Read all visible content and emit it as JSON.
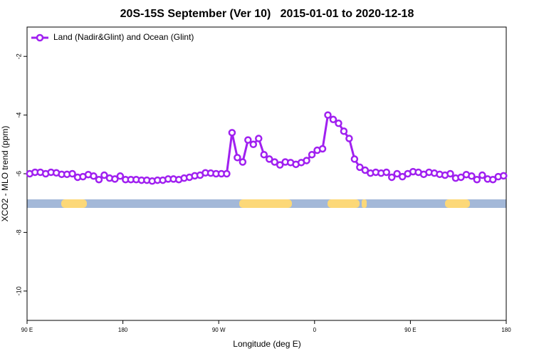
{
  "chart_data": {
    "type": "line",
    "title": "20S-15S September (Ver 10)   2015-01-01 to 2020-12-18",
    "x_label": "Longitude (deg E)",
    "y_label": "XCO2 - MLO trend (ppm)",
    "x": [
      92.5,
      97.5,
      102.5,
      107.5,
      112.5,
      117.5,
      122.5,
      127.5,
      132.5,
      137.5,
      142.5,
      147.5,
      152.5,
      157.5,
      162.5,
      167.5,
      172.5,
      177.5,
      182.5,
      187.5,
      192.5,
      197.5,
      202.5,
      207.5,
      212.5,
      217.5,
      222.5,
      227.5,
      232.5,
      237.5,
      242.5,
      247.5,
      252.5,
      257.5,
      262.5,
      267.5,
      272.5,
      277.5,
      282.5,
      287.5,
      292.5,
      297.5,
      302.5,
      307.5,
      312.5,
      317.5,
      322.5,
      327.5,
      332.5,
      337.5,
      342.5,
      347.5,
      352.5,
      357.5,
      362.5,
      367.5,
      372.5,
      377.5,
      382.5,
      387.5,
      392.5,
      397.5,
      402.5,
      407.5,
      412.5,
      417.5,
      422.5,
      427.5,
      432.5,
      437.5,
      442.5,
      447.5,
      452.5,
      457.5,
      462.5,
      467.5,
      472.5,
      477.5,
      482.5,
      487.5,
      492.5,
      497.5,
      502.5,
      507.5,
      512.5,
      517.5,
      522.5,
      527.5,
      532.5,
      537.5
    ],
    "series": [
      {
        "name": "Land (Nadir&Glint) and Ocean (Glint)",
        "color": "#a020f0",
        "values": [
          -6.0,
          -5.95,
          -5.95,
          -6.0,
          -5.95,
          -5.97,
          -6.02,
          -6.02,
          -6.0,
          -6.12,
          -6.1,
          -6.03,
          -6.08,
          -6.2,
          -6.05,
          -6.15,
          -6.18,
          -6.08,
          -6.2,
          -6.2,
          -6.2,
          -6.22,
          -6.22,
          -6.25,
          -6.22,
          -6.22,
          -6.18,
          -6.18,
          -6.2,
          -6.15,
          -6.12,
          -6.07,
          -6.05,
          -5.97,
          -5.98,
          -6.0,
          -6.0,
          -6.0,
          -4.6,
          -5.45,
          -5.6,
          -4.85,
          -5.0,
          -4.8,
          -5.35,
          -5.5,
          -5.6,
          -5.7,
          -5.6,
          -5.62,
          -5.68,
          -5.62,
          -5.55,
          -5.35,
          -5.2,
          -5.15,
          -4.0,
          -4.15,
          -4.28,
          -4.55,
          -4.8,
          -5.5,
          -5.78,
          -5.88,
          -5.98,
          -5.95,
          -5.98,
          -5.95,
          -6.12,
          -6.0,
          -6.1,
          -6.0,
          -5.93,
          -5.95,
          -6.02,
          -5.95,
          -5.98,
          -6.02,
          -6.05,
          -6.0,
          -6.15,
          -6.12,
          -6.03,
          -6.08,
          -6.2,
          -6.05,
          -6.18,
          -6.2,
          -6.1,
          -6.07
        ]
      }
    ],
    "xlim": [
      90,
      540
    ],
    "xticks": [
      {
        "value": 90,
        "label": "90 E"
      },
      {
        "value": 180,
        "label": "180"
      },
      {
        "value": 270,
        "label": "90 W"
      },
      {
        "value": 360,
        "label": "0"
      },
      {
        "value": 450,
        "label": "90 E"
      },
      {
        "value": 540,
        "label": "180"
      }
    ],
    "ylim": [
      -11,
      -1
    ],
    "yticks": [
      -10,
      -8,
      -6,
      -4,
      -2
    ],
    "legend": "top-left",
    "grid": false
  }
}
